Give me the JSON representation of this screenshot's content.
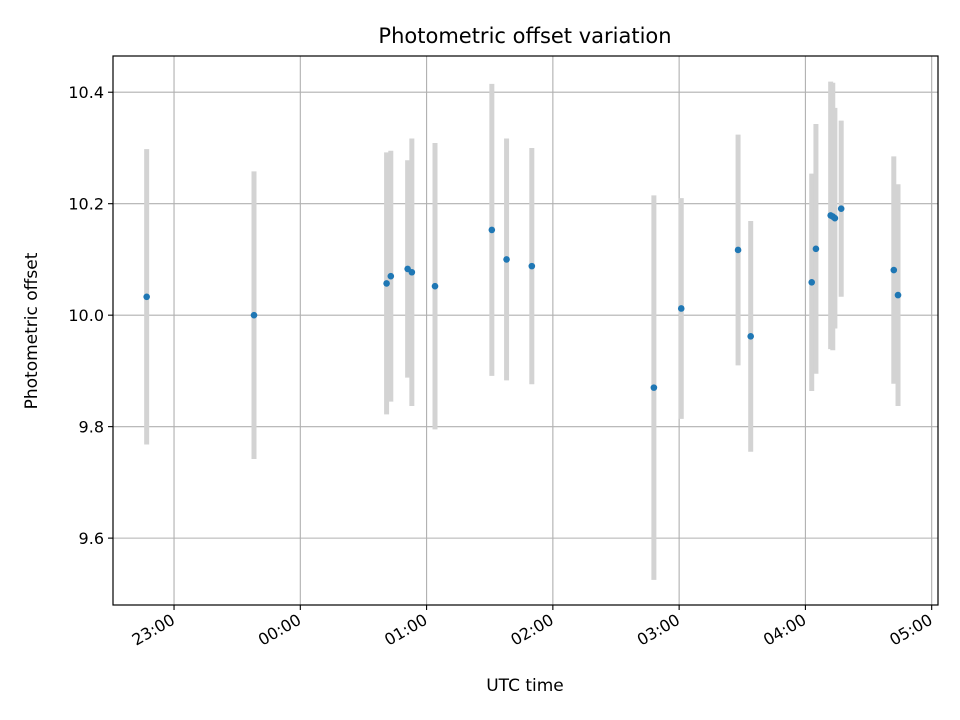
{
  "chart_data": {
    "type": "scatter",
    "title": "Photometric offset variation",
    "xlabel": "UTC time",
    "ylabel": "Photometric offset",
    "xlim": [
      "22:31",
      "05:03"
    ],
    "ylim": [
      9.48,
      10.465
    ],
    "grid": true,
    "x_ticks": [
      "23:00",
      "00:00",
      "01:00",
      "02:00",
      "03:00",
      "04:00",
      "05:00"
    ],
    "y_ticks": [
      "9.6",
      "9.8",
      "10.0",
      "10.2",
      "10.4"
    ],
    "colors": {
      "points": "#1f77b4",
      "errorbars": "#d3d3d3",
      "grid": "#b0b0b0"
    },
    "series": [
      {
        "points": [
          {
            "x": "22:47",
            "y": 10.033,
            "err": 0.265
          },
          {
            "x": "23:38",
            "y": 10.0,
            "err": 0.258
          },
          {
            "x": "00:41",
            "y": 10.057,
            "err": 0.235
          },
          {
            "x": "00:43",
            "y": 10.07,
            "err": 0.225
          },
          {
            "x": "00:51",
            "y": 10.083,
            "err": 0.195
          },
          {
            "x": "00:53",
            "y": 10.077,
            "err": 0.24
          },
          {
            "x": "01:04",
            "y": 10.052,
            "err": 0.257
          },
          {
            "x": "01:31",
            "y": 10.153,
            "err": 0.262
          },
          {
            "x": "01:38",
            "y": 10.1,
            "err": 0.217
          },
          {
            "x": "01:50",
            "y": 10.088,
            "err": 0.212
          },
          {
            "x": "02:48",
            "y": 9.87,
            "err": 0.345
          },
          {
            "x": "03:01",
            "y": 10.012,
            "err": 0.198
          },
          {
            "x": "03:28",
            "y": 10.117,
            "err": 0.207
          },
          {
            "x": "03:34",
            "y": 9.962,
            "err": 0.207
          },
          {
            "x": "04:03",
            "y": 10.059,
            "err": 0.195
          },
          {
            "x": "04:05",
            "y": 10.119,
            "err": 0.224
          },
          {
            "x": "04:12",
            "y": 10.179,
            "err": 0.24
          },
          {
            "x": "04:13",
            "y": 10.177,
            "err": 0.24
          },
          {
            "x": "04:14",
            "y": 10.174,
            "err": 0.198
          },
          {
            "x": "04:17",
            "y": 10.191,
            "err": 0.158
          },
          {
            "x": "04:42",
            "y": 10.081,
            "err": 0.204
          },
          {
            "x": "04:44",
            "y": 10.036,
            "err": 0.199
          }
        ]
      }
    ]
  }
}
